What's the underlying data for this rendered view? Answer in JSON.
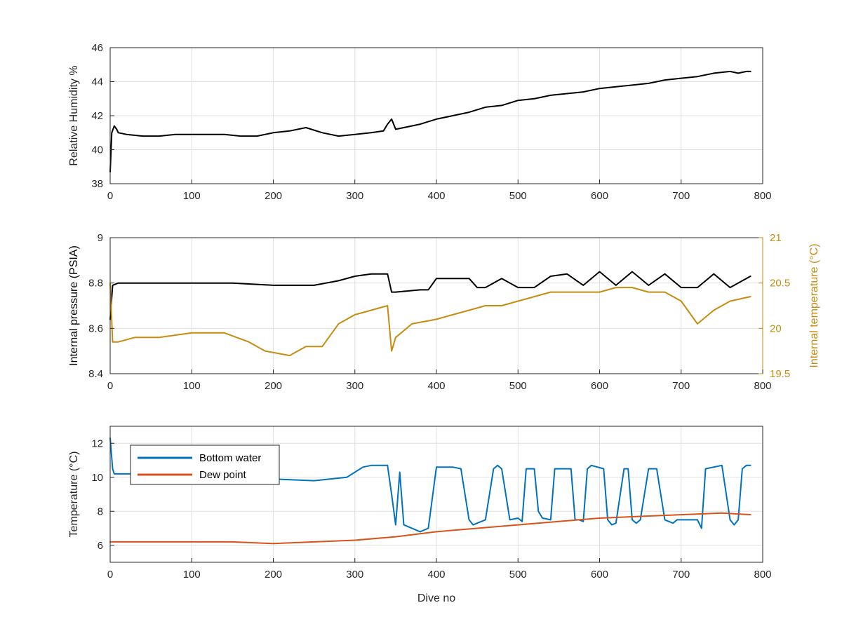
{
  "chart_data": [
    {
      "type": "line",
      "xlabel": "",
      "ylabel": "Relative Humidity %",
      "xlim": [
        0,
        800
      ],
      "ylim": [
        38,
        46
      ],
      "xticks": [
        0,
        100,
        200,
        300,
        400,
        500,
        600,
        700,
        800
      ],
      "yticks": [
        38,
        40,
        42,
        44,
        46
      ],
      "grid": true,
      "series": [
        {
          "color": "#000000",
          "x": [
            0,
            2,
            5,
            8,
            10,
            20,
            40,
            60,
            80,
            100,
            120,
            140,
            160,
            180,
            200,
            220,
            240,
            260,
            280,
            300,
            320,
            335,
            340,
            345,
            350,
            360,
            380,
            400,
            420,
            440,
            460,
            480,
            500,
            520,
            540,
            560,
            580,
            600,
            620,
            640,
            660,
            680,
            700,
            720,
            740,
            760,
            770,
            780,
            785
          ],
          "values": [
            38.7,
            41.0,
            41.4,
            41.2,
            41.0,
            40.9,
            40.8,
            40.8,
            40.9,
            40.9,
            40.9,
            40.9,
            40.8,
            40.8,
            41.0,
            41.1,
            41.3,
            41.0,
            40.8,
            40.9,
            41.0,
            41.1,
            41.5,
            41.8,
            41.2,
            41.3,
            41.5,
            41.8,
            42.0,
            42.2,
            42.5,
            42.6,
            42.9,
            43.0,
            43.2,
            43.3,
            43.4,
            43.6,
            43.7,
            43.8,
            43.9,
            44.1,
            44.2,
            44.3,
            44.5,
            44.6,
            44.5,
            44.6,
            44.6
          ]
        }
      ]
    },
    {
      "type": "line",
      "xlabel": "",
      "ylabel": "Internal pressure (PSIA)",
      "y2label": "Internal temperature (°C)",
      "xlim": [
        0,
        800
      ],
      "ylim": [
        8.4,
        9.0
      ],
      "y2lim": [
        19.5,
        21.0
      ],
      "xticks": [
        0,
        100,
        200,
        300,
        400,
        500,
        600,
        700,
        800
      ],
      "yticks": [
        8.4,
        8.6,
        8.8,
        9.0
      ],
      "yticklabels": [
        "8.4",
        "8.6",
        "8.8",
        "9"
      ],
      "y2ticks": [
        19.5,
        20.0,
        20.5,
        21.0
      ],
      "y2ticklabels": [
        "19.5",
        "20",
        "20.5",
        "21"
      ],
      "y2color": "#C58C0E",
      "grid": true,
      "series": [
        {
          "axis": "left",
          "color": "#000000",
          "x": [
            0,
            3,
            10,
            50,
            100,
            150,
            200,
            250,
            280,
            300,
            320,
            340,
            345,
            350,
            380,
            390,
            400,
            420,
            440,
            450,
            460,
            480,
            500,
            520,
            540,
            560,
            580,
            600,
            620,
            640,
            660,
            680,
            700,
            720,
            740,
            760,
            785
          ],
          "values": [
            8.64,
            8.79,
            8.8,
            8.8,
            8.8,
            8.8,
            8.79,
            8.79,
            8.81,
            8.83,
            8.84,
            8.84,
            8.76,
            8.76,
            8.77,
            8.77,
            8.82,
            8.82,
            8.82,
            8.78,
            8.78,
            8.82,
            8.78,
            8.78,
            8.83,
            8.84,
            8.79,
            8.85,
            8.79,
            8.85,
            8.79,
            8.84,
            8.78,
            8.78,
            8.84,
            8.78,
            8.83
          ]
        },
        {
          "axis": "right",
          "color": "#C58C0E",
          "x": [
            0,
            3,
            10,
            30,
            60,
            100,
            140,
            170,
            190,
            220,
            240,
            260,
            280,
            300,
            320,
            340,
            345,
            350,
            370,
            400,
            420,
            440,
            460,
            480,
            500,
            520,
            540,
            560,
            580,
            600,
            620,
            640,
            660,
            680,
            700,
            720,
            740,
            760,
            785
          ],
          "values": [
            20.5,
            19.85,
            19.85,
            19.9,
            19.9,
            19.95,
            19.95,
            19.85,
            19.75,
            19.7,
            19.8,
            19.8,
            20.05,
            20.15,
            20.2,
            20.25,
            19.75,
            19.9,
            20.05,
            20.1,
            20.15,
            20.2,
            20.25,
            20.25,
            20.3,
            20.35,
            20.4,
            20.4,
            20.4,
            20.4,
            20.45,
            20.45,
            20.4,
            20.4,
            20.3,
            20.05,
            20.2,
            20.3,
            20.35
          ]
        }
      ]
    },
    {
      "type": "line",
      "xlabel": "Dive no",
      "ylabel": "Temperature (°C)",
      "xlim": [
        0,
        800
      ],
      "ylim": [
        5,
        13
      ],
      "xticks": [
        0,
        100,
        200,
        300,
        400,
        500,
        600,
        700,
        800
      ],
      "yticks": [
        6,
        8,
        10,
        12
      ],
      "grid": true,
      "legend": {
        "location": "top-left",
        "entries": [
          "Bottom water",
          "Dew point"
        ]
      },
      "series": [
        {
          "name": "Bottom water",
          "color": "#0072BD",
          "x": [
            0,
            3,
            5,
            10,
            50,
            100,
            150,
            200,
            250,
            290,
            300,
            310,
            320,
            340,
            345,
            350,
            355,
            360,
            380,
            390,
            400,
            420,
            430,
            440,
            445,
            450,
            460,
            470,
            475,
            480,
            490,
            500,
            505,
            510,
            520,
            525,
            530,
            540,
            545,
            550,
            565,
            570,
            575,
            580,
            585,
            590,
            605,
            610,
            615,
            620,
            630,
            635,
            640,
            645,
            650,
            660,
            670,
            680,
            690,
            695,
            700,
            720,
            725,
            730,
            750,
            760,
            765,
            770,
            775,
            780,
            785
          ],
          "values": [
            12.3,
            10.5,
            10.2,
            10.2,
            10.2,
            10.1,
            10.0,
            9.9,
            9.8,
            10.0,
            10.3,
            10.6,
            10.7,
            10.7,
            9.0,
            7.2,
            10.3,
            7.2,
            6.8,
            7.0,
            10.6,
            10.6,
            10.5,
            7.5,
            7.2,
            7.3,
            7.5,
            10.5,
            10.7,
            10.5,
            7.5,
            7.6,
            7.4,
            10.5,
            10.5,
            8.0,
            7.6,
            7.5,
            10.5,
            10.5,
            10.5,
            7.5,
            7.5,
            7.4,
            10.5,
            10.7,
            10.5,
            7.5,
            7.2,
            7.3,
            10.5,
            10.5,
            7.5,
            7.3,
            7.5,
            10.5,
            10.5,
            7.5,
            7.3,
            7.5,
            7.5,
            7.5,
            7.0,
            10.5,
            10.7,
            7.5,
            7.2,
            7.5,
            10.5,
            10.7,
            10.7
          ]
        },
        {
          "name": "Dew point",
          "color": "#D95319",
          "x": [
            0,
            50,
            100,
            150,
            200,
            250,
            300,
            350,
            400,
            450,
            500,
            550,
            600,
            650,
            700,
            750,
            785
          ],
          "values": [
            6.2,
            6.2,
            6.2,
            6.2,
            6.1,
            6.2,
            6.3,
            6.5,
            6.8,
            7.0,
            7.2,
            7.4,
            7.6,
            7.7,
            7.8,
            7.9,
            7.8
          ]
        }
      ]
    }
  ]
}
